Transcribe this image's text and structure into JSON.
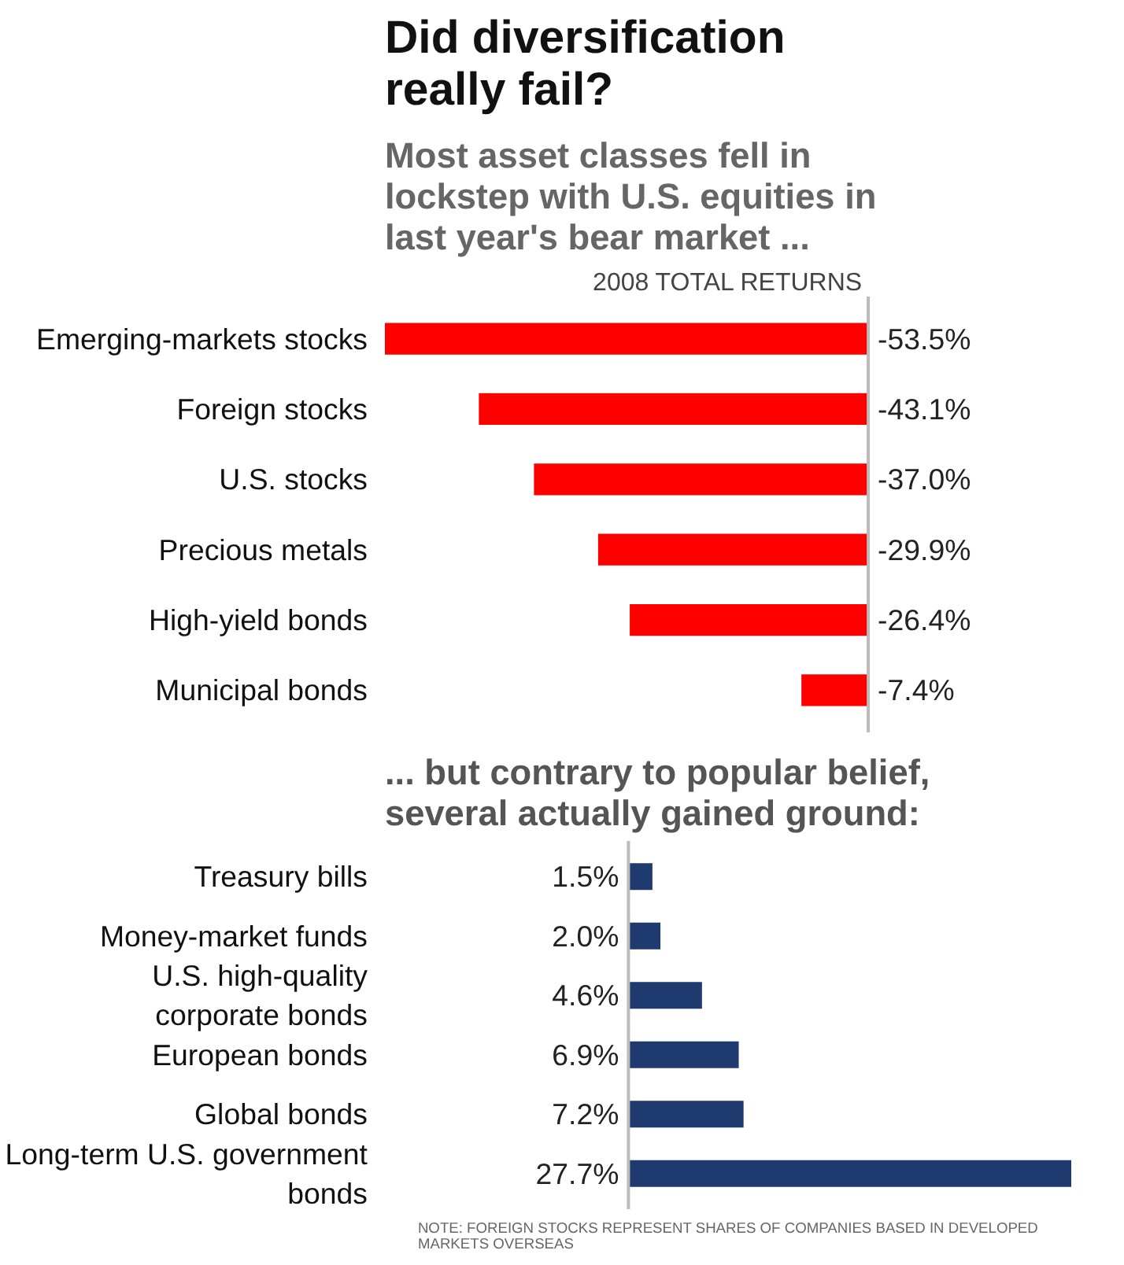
{
  "chart_data": [
    {
      "type": "bar",
      "orientation": "horizontal",
      "title": "Did diversification really fail?",
      "subtitle": "Most asset classes fell in lockstep with U.S. equities in last year's bear market ...",
      "xlabel": "2008 TOTAL RETURNS",
      "categories": [
        "Emerging-markets stocks",
        "Foreign stocks",
        "U.S. stocks",
        "Precious metals",
        "High-yield bonds",
        "Municipal bonds"
      ],
      "values": [
        -53.5,
        -43.1,
        -37.0,
        -29.9,
        -26.4,
        -7.4
      ],
      "color": "#ff0000",
      "value_labels": [
        "-53.5%",
        "-43.1%",
        "-37.0%",
        "-29.9%",
        "-26.4%",
        "-7.4%"
      ],
      "tick_labels": "y",
      "grid": false
    },
    {
      "type": "bar",
      "orientation": "horizontal",
      "title": "... but contrary to popular belief, several actually gained ground:",
      "categories": [
        "Treasury bills",
        "Money-market funds",
        "U.S. high-quality corporate bonds",
        "European bonds",
        "Global bonds",
        "Long-term U.S. government bonds"
      ],
      "values": [
        1.5,
        2.0,
        4.6,
        6.9,
        7.2,
        27.7
      ],
      "color": "#1f3a6e",
      "value_labels": [
        "1.5%",
        "2.0%",
        "4.6%",
        "6.9%",
        "7.2%",
        "27.7%"
      ],
      "tick_labels": "y",
      "grid": false,
      "annotations": [
        "NOTE: FOREIGN STOCKS REPRESENT SHARES OF COMPANIES BASED IN DEVELOPED MARKETS OVERSEAS"
      ]
    }
  ]
}
